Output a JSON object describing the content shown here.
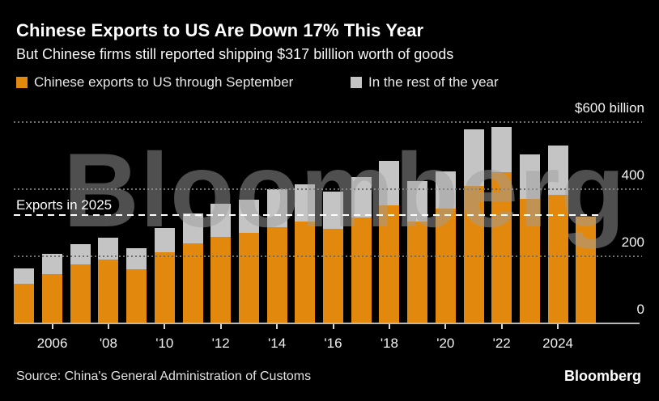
{
  "header": {
    "title": "Chinese Exports to US Are Down 17% This Year",
    "subtitle": "But Chinese firms still reported shipping $317 billlion worth of goods"
  },
  "legend": {
    "items": [
      {
        "label": "Chinese exports to US through September",
        "color": "#E2890D"
      },
      {
        "label": "In the rest of the year",
        "color": "#C4C4C4"
      }
    ]
  },
  "watermark": {
    "text": "Bloomberg"
  },
  "annotation": {
    "label": "Exports in 2025",
    "value": 317
  },
  "y_axis": {
    "top_label": "$600 billion",
    "ticks": [
      {
        "value": 400,
        "label": "400"
      },
      {
        "value": 200,
        "label": "200"
      },
      {
        "value": 0,
        "label": "0"
      }
    ],
    "gridline_values": [
      600,
      400,
      200
    ]
  },
  "x_axis": {
    "ticks": [
      {
        "year": 2006,
        "label": "2006"
      },
      {
        "year": 2008,
        "label": "'08"
      },
      {
        "year": 2010,
        "label": "'10"
      },
      {
        "year": 2012,
        "label": "'12"
      },
      {
        "year": 2014,
        "label": "'14"
      },
      {
        "year": 2016,
        "label": "'16"
      },
      {
        "year": 2018,
        "label": "'18"
      },
      {
        "year": 2020,
        "label": "'20"
      },
      {
        "year": 2022,
        "label": "'22"
      },
      {
        "year": 2024,
        "label": "2024"
      }
    ]
  },
  "footer": {
    "source": "Source: China's General Administration of Customs",
    "logo": "Bloomberg"
  },
  "chart_data": {
    "type": "bar",
    "stacked": true,
    "title": "Chinese Exports to US Are Down 17% This Year",
    "subtitle": "But Chinese firms still reported shipping $317 billlion worth of goods",
    "unit": "$ billion",
    "ylim": [
      0,
      600
    ],
    "grid": "horizontal-dotted",
    "legend_position": "top-left",
    "categories": [
      2005,
      2006,
      2007,
      2008,
      2009,
      2010,
      2011,
      2012,
      2013,
      2014,
      2015,
      2016,
      2017,
      2018,
      2019,
      2020,
      2021,
      2022,
      2023,
      2024,
      2025
    ],
    "series": [
      {
        "name": "Chinese exports to US through September",
        "color": "#E2890D",
        "values": [
          118,
          147,
          176,
          190,
          162,
          211,
          238,
          259,
          269,
          286,
          303,
          282,
          315,
          352,
          303,
          342,
          410,
          450,
          371,
          383,
          317
        ]
      },
      {
        "name": "In the rest of the year",
        "color": "#C4C4C4",
        "values": [
          45,
          61,
          60,
          66,
          61,
          73,
          89,
          97,
          99,
          114,
          112,
          111,
          121,
          133,
          121,
          111,
          168,
          135,
          133,
          146,
          0
        ]
      }
    ],
    "reference_line": {
      "label": "Exports in 2025",
      "value": 317
    }
  }
}
